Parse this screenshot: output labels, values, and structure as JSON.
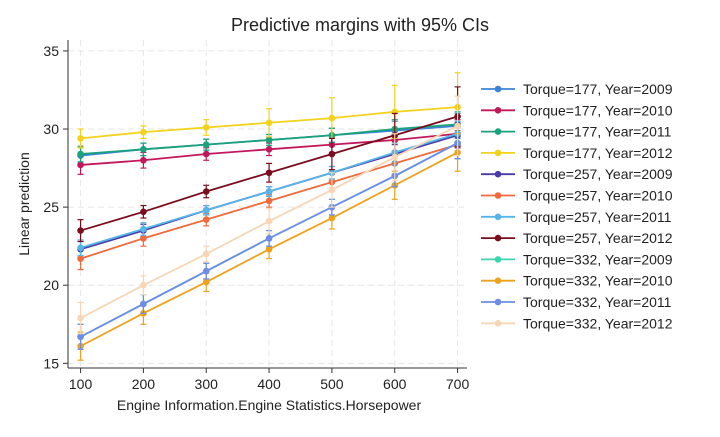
{
  "chart_data": {
    "type": "line",
    "title": "Predictive margins with 95% CIs",
    "xlabel": "Engine Information.Engine Statistics.Horsepower",
    "ylabel": "Linear prediction",
    "x": [
      100,
      200,
      300,
      400,
      500,
      600,
      700
    ],
    "x_ticks": [
      100,
      200,
      300,
      400,
      500,
      600,
      700
    ],
    "y_ticks": [
      15,
      20,
      25,
      30,
      35
    ],
    "xlim": [
      80,
      715
    ],
    "ylim": [
      14.7,
      35.7
    ],
    "grid": true,
    "legend_position": "right",
    "series": [
      {
        "name": "Torque=177, Year=2009",
        "color": "#3b82d6",
        "values": [
          28.3,
          28.7,
          29.0,
          29.3,
          29.6,
          29.9,
          30.2
        ],
        "ci": [
          0.5,
          0.4,
          0.35,
          0.35,
          0.45,
          0.6,
          0.8
        ]
      },
      {
        "name": "Torque=177, Year=2010",
        "color": "#c2185b",
        "values": [
          27.7,
          28.0,
          28.4,
          28.7,
          29.0,
          29.3,
          29.7
        ],
        "ci": [
          0.6,
          0.5,
          0.4,
          0.4,
          0.5,
          0.7,
          0.9
        ]
      },
      {
        "name": "Torque=177, Year=2011",
        "color": "#1aa37a",
        "values": [
          28.4,
          28.7,
          29.0,
          29.3,
          29.6,
          30.0,
          30.3
        ],
        "ci": [
          0.5,
          0.4,
          0.35,
          0.35,
          0.45,
          0.6,
          0.8
        ]
      },
      {
        "name": "Torque=177, Year=2012",
        "color": "#f2d21b",
        "values": [
          29.4,
          29.8,
          30.1,
          30.4,
          30.7,
          31.1,
          31.4
        ],
        "ci": [
          0.6,
          0.4,
          0.5,
          0.9,
          1.3,
          1.7,
          2.2
        ]
      },
      {
        "name": "Torque=257, Year=2009",
        "color": "#4a3aa8",
        "values": [
          22.3,
          23.5,
          24.8,
          26.0,
          27.2,
          28.4,
          29.6
        ],
        "ci": [
          0.5,
          0.4,
          0.3,
          0.3,
          0.4,
          0.6,
          0.8
        ]
      },
      {
        "name": "Torque=257, Year=2010",
        "color": "#f06a3c",
        "values": [
          21.7,
          23.0,
          24.2,
          25.4,
          26.6,
          27.8,
          29.0
        ],
        "ci": [
          0.7,
          0.5,
          0.4,
          0.4,
          0.5,
          0.7,
          0.9
        ]
      },
      {
        "name": "Torque=257, Year=2011",
        "color": "#56b4e9",
        "values": [
          22.4,
          23.6,
          24.8,
          26.0,
          27.2,
          28.5,
          29.7
        ],
        "ci": [
          0.5,
          0.4,
          0.3,
          0.3,
          0.4,
          0.6,
          0.8
        ]
      },
      {
        "name": "Torque=257, Year=2012",
        "color": "#7b0d1e",
        "values": [
          23.5,
          24.7,
          26.0,
          27.2,
          28.4,
          29.6,
          30.8
        ],
        "ci": [
          0.7,
          0.4,
          0.4,
          0.6,
          1.0,
          1.4,
          1.9
        ]
      },
      {
        "name": "Torque=332, Year=2009",
        "color": "#3ad6b0",
        "values": [
          16.7,
          18.8,
          20.9,
          23.0,
          25.0,
          27.0,
          29.1
        ],
        "ci": [
          0.8,
          0.6,
          0.5,
          0.5,
          0.5,
          0.7,
          1.0
        ]
      },
      {
        "name": "Torque=332, Year=2010",
        "color": "#eda21c",
        "values": [
          16.1,
          18.2,
          20.2,
          22.3,
          24.3,
          26.4,
          28.5
        ],
        "ci": [
          0.9,
          0.7,
          0.6,
          0.6,
          0.7,
          0.9,
          1.2
        ]
      },
      {
        "name": "Torque=332, Year=2011",
        "color": "#6e8be8",
        "values": [
          16.7,
          18.8,
          20.9,
          23.0,
          25.0,
          27.0,
          29.1
        ],
        "ci": [
          0.8,
          0.6,
          0.5,
          0.5,
          0.5,
          0.7,
          1.0
        ]
      },
      {
        "name": "Torque=332, Year=2012",
        "color": "#f6d6b4",
        "values": [
          17.9,
          20.0,
          22.0,
          24.1,
          26.1,
          28.2,
          30.2
        ],
        "ci": [
          1.0,
          0.6,
          0.5,
          0.8,
          1.1,
          1.5,
          1.9
        ]
      }
    ]
  }
}
